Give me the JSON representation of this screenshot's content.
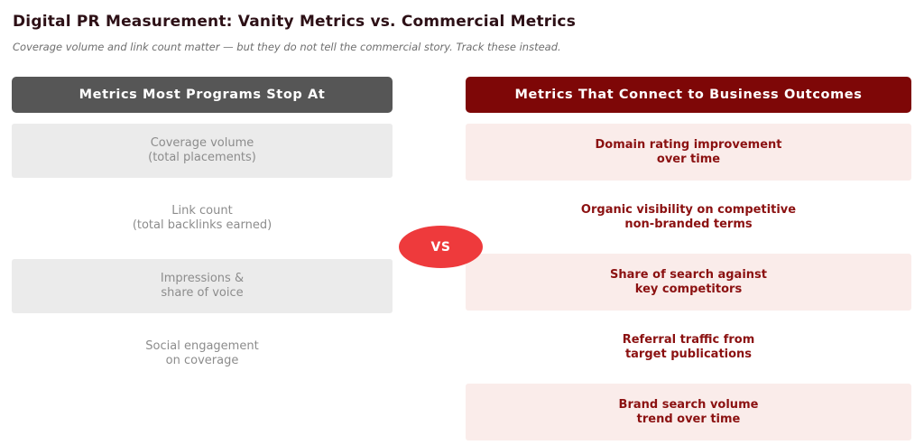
{
  "title": "Digital PR Measurement: Vanity Metrics vs. Commercial Metrics",
  "subtitle": "Coverage volume and link count matter — but they do not tell the commercial story. Track these instead.",
  "vs_badge": "VS",
  "left": {
    "header": "Metrics Most Programs Stop At",
    "items": [
      {
        "text": "Coverage volume\n(total placements)",
        "highlighted": true
      },
      {
        "text": "Link count\n(total backlinks earned)",
        "highlighted": false
      },
      {
        "text": "Impressions &\nshare of voice",
        "highlighted": true
      },
      {
        "text": "Social engagement\non coverage",
        "highlighted": false
      }
    ]
  },
  "right": {
    "header": "Metrics That Connect to Business Outcomes",
    "items": [
      {
        "text": "Domain rating improvement\nover time",
        "highlighted": true
      },
      {
        "text": "Organic visibility on competitive\nnon-branded terms",
        "highlighted": false
      },
      {
        "text": "Share of search against\nkey competitors",
        "highlighted": true
      },
      {
        "text": "Referral traffic from\ntarget publications",
        "highlighted": false
      },
      {
        "text": "Brand search volume\ntrend over time",
        "highlighted": true
      }
    ]
  },
  "colors": {
    "title_text": "#2D1016",
    "subtitle_text": "#6E6E6E",
    "left_header_bg": "#565656",
    "right_header_bg": "#7E0707",
    "left_row_bg": "#EBEBEB",
    "right_row_bg": "#FAECEA",
    "left_text": "#8C8C8C",
    "right_text": "#8B1111",
    "vs_bg": "#EE3A3C",
    "header_text": "#FFFFFF"
  }
}
